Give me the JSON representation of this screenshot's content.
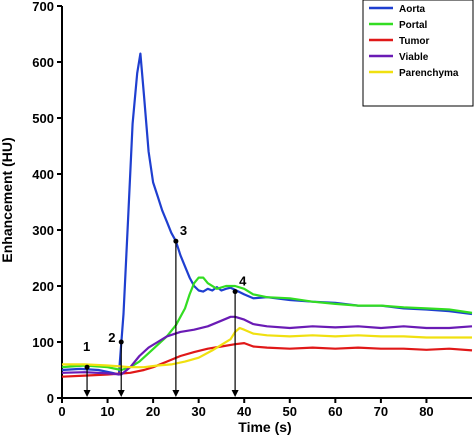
{
  "chart_data": {
    "type": "line",
    "xlabel": "Time (s)",
    "ylabel": "Enhancement (HU)",
    "xlim": [
      0,
      90
    ],
    "ylim": [
      0,
      700
    ],
    "xticks": [
      0,
      10,
      20,
      30,
      40,
      50,
      60,
      70,
      80
    ],
    "yticks": [
      0,
      100,
      200,
      300,
      400,
      500,
      600,
      700
    ],
    "grid": false,
    "legend_position": "top-right",
    "series": [
      {
        "name": "Aorta",
        "color": "#1f3fd0",
        "x": [
          0,
          4,
          8,
          11,
          12.5,
          13.5,
          14.5,
          15.5,
          16.5,
          17.2,
          18,
          19,
          20,
          21,
          22,
          23,
          24,
          25,
          26,
          27,
          28,
          29,
          30,
          31,
          32,
          33,
          34,
          35,
          36,
          37,
          38,
          40,
          42,
          45,
          50,
          55,
          60,
          65,
          70,
          75,
          80,
          85,
          90
        ],
        "y": [
          50,
          52,
          50,
          45,
          42,
          150,
          320,
          490,
          580,
          615,
          540,
          440,
          385,
          360,
          335,
          315,
          295,
          280,
          255,
          235,
          215,
          200,
          192,
          190,
          195,
          192,
          198,
          192,
          195,
          197,
          193,
          185,
          178,
          180,
          175,
          172,
          170,
          165,
          165,
          160,
          158,
          155,
          150
        ]
      },
      {
        "name": "Portal",
        "color": "#33dd22",
        "x": [
          0,
          5,
          10,
          13,
          15,
          17,
          19,
          21,
          23,
          25,
          27,
          28,
          29,
          30,
          31,
          32,
          34,
          36,
          38,
          40,
          42,
          45,
          50,
          55,
          60,
          65,
          70,
          75,
          80,
          85,
          90
        ],
        "y": [
          55,
          58,
          55,
          50,
          55,
          65,
          80,
          95,
          110,
          130,
          160,
          185,
          205,
          215,
          215,
          205,
          195,
          200,
          200,
          195,
          185,
          180,
          178,
          172,
          168,
          165,
          165,
          162,
          160,
          158,
          152
        ]
      },
      {
        "name": "Tumor",
        "color": "#e01818",
        "x": [
          0,
          5,
          10,
          15,
          18,
          20,
          23,
          26,
          29,
          32,
          35,
          38,
          40,
          42,
          45,
          50,
          55,
          60,
          65,
          70,
          75,
          80,
          85,
          90
        ],
        "y": [
          38,
          40,
          42,
          45,
          50,
          55,
          65,
          75,
          82,
          88,
          92,
          96,
          98,
          92,
          90,
          88,
          90,
          88,
          90,
          88,
          88,
          86,
          88,
          85
        ]
      },
      {
        "name": "Viable",
        "color": "#6a1bb5",
        "x": [
          0,
          5,
          10,
          13,
          15,
          17,
          19,
          21,
          23,
          26,
          29,
          32,
          35,
          37,
          38,
          40,
          42,
          45,
          50,
          55,
          60,
          65,
          70,
          75,
          80,
          85,
          90
        ],
        "y": [
          45,
          46,
          44,
          42,
          55,
          75,
          90,
          100,
          110,
          118,
          122,
          128,
          138,
          145,
          145,
          140,
          132,
          128,
          125,
          128,
          126,
          128,
          125,
          128,
          125,
          125,
          128
        ]
      },
      {
        "name": "Parenchyma",
        "color": "#f0e010",
        "x": [
          0,
          5,
          10,
          15,
          18,
          21,
          24,
          27,
          30,
          33,
          35,
          37,
          38,
          39,
          40,
          42,
          45,
          50,
          55,
          60,
          65,
          70,
          75,
          80,
          85,
          90
        ],
        "y": [
          60,
          60,
          58,
          55,
          55,
          58,
          60,
          65,
          72,
          85,
          95,
          105,
          118,
          125,
          122,
          115,
          112,
          110,
          112,
          110,
          112,
          110,
          110,
          108,
          108,
          108
        ]
      }
    ],
    "markers": [
      {
        "label": "1",
        "x": 5.5,
        "y": 55
      },
      {
        "label": "2",
        "x": 13,
        "y": 100
      },
      {
        "label": "3",
        "x": 25,
        "y": 280
      },
      {
        "label": "4",
        "x": 38,
        "y": 190
      }
    ]
  }
}
